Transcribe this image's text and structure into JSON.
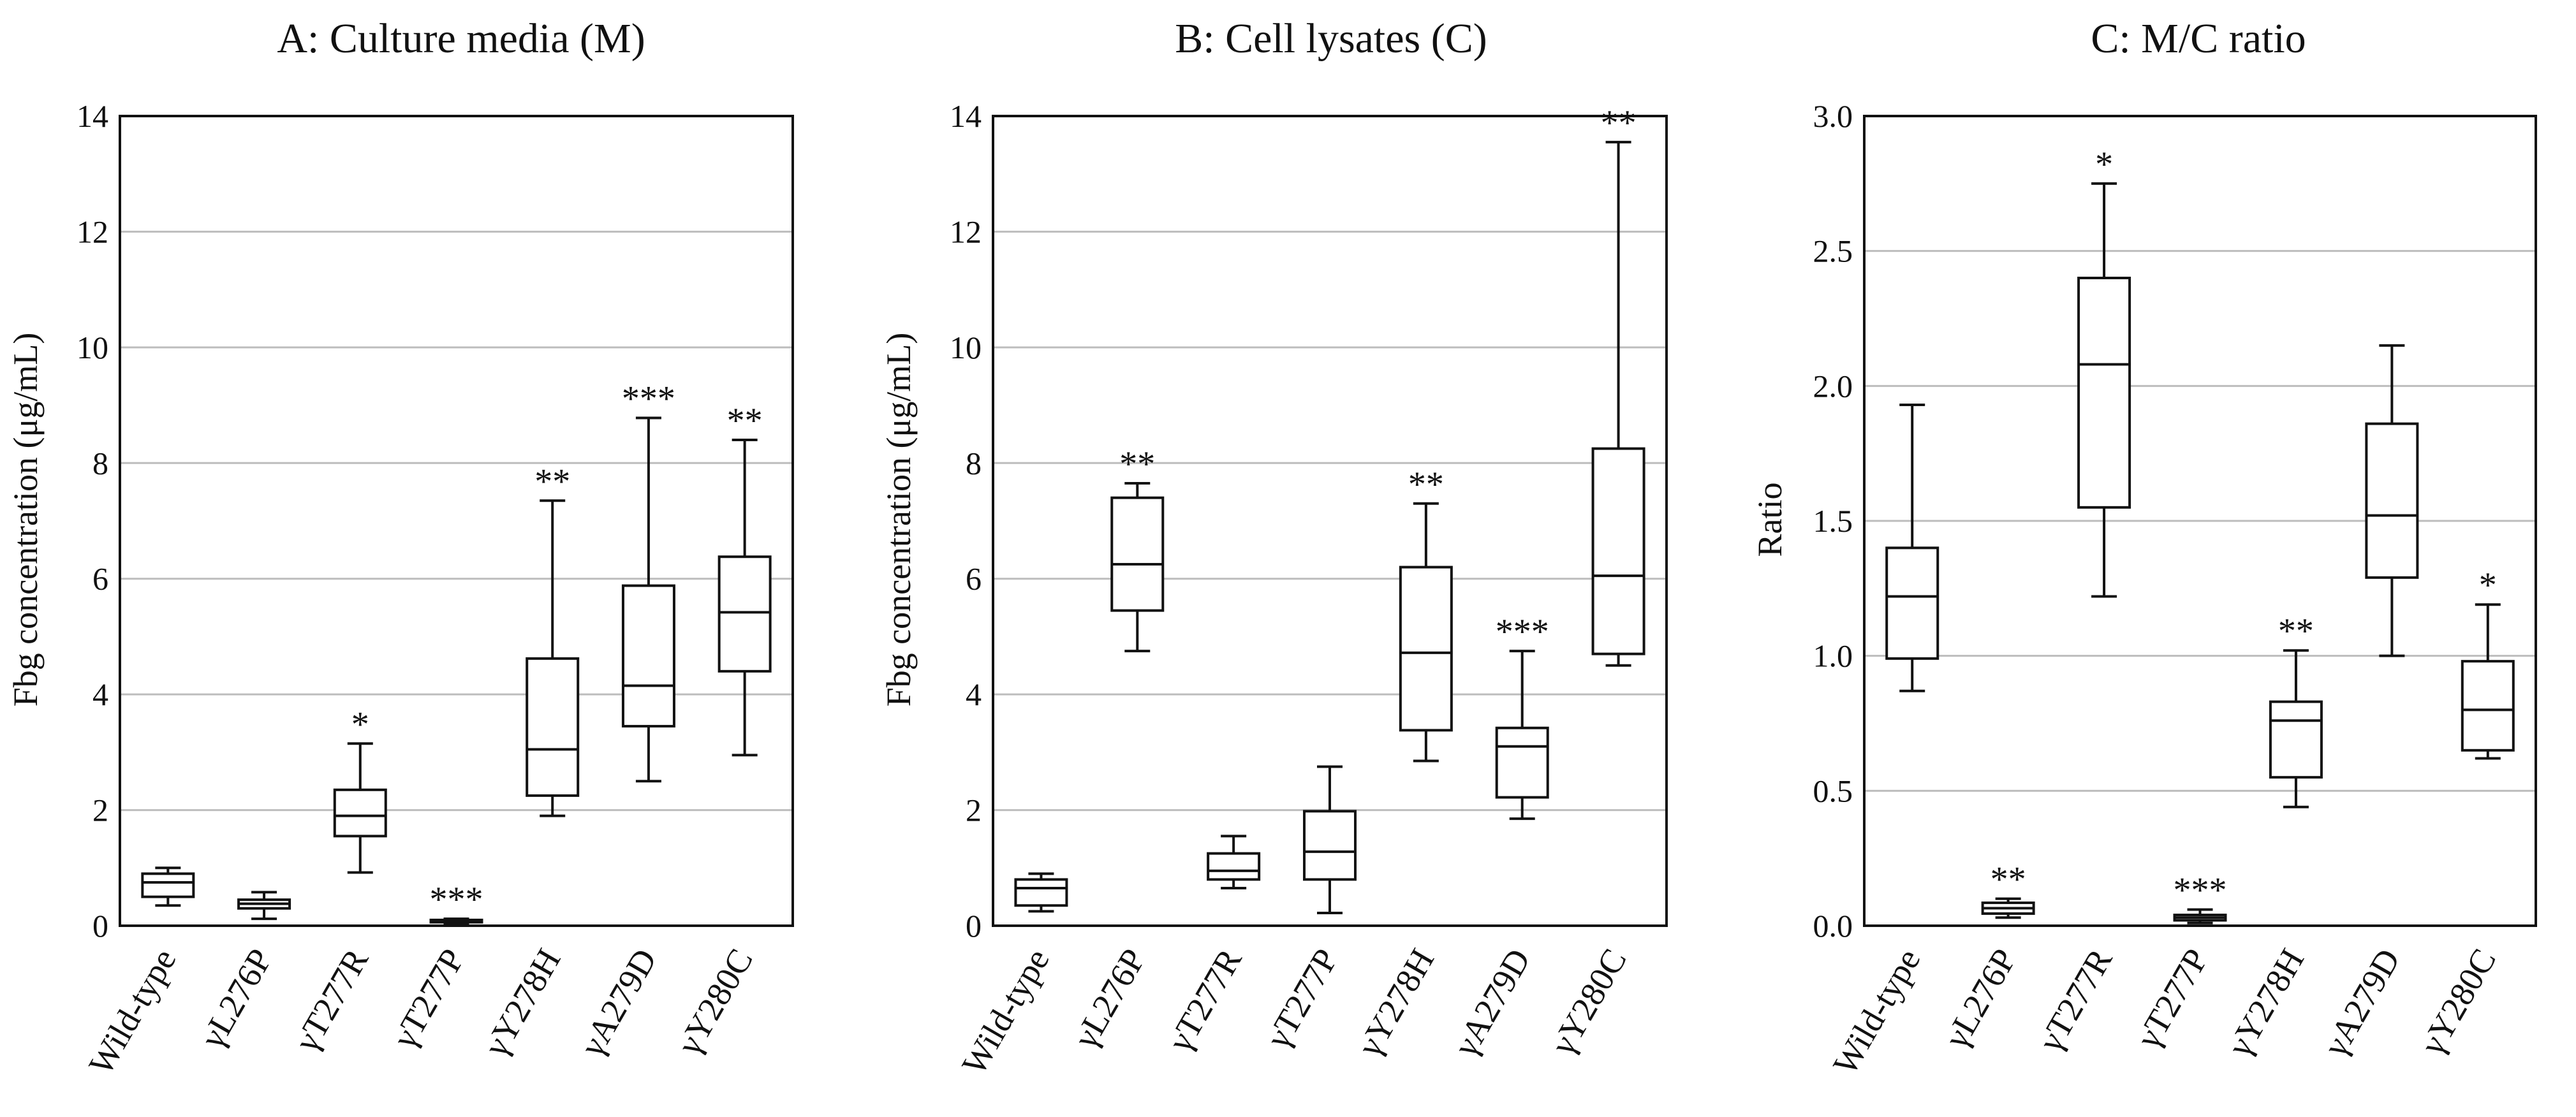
{
  "colors": {
    "background": "#ffffff",
    "ink": "#111111",
    "gridline": "#bdbdbd"
  },
  "chart_data": [
    {
      "type": "box",
      "title": "A: Culture media (M)",
      "xlabel": "",
      "ylabel": "Fbg concentration  (μg/mL)",
      "ylim": [
        0,
        14
      ],
      "yticks": [
        0,
        2,
        4,
        6,
        8,
        10,
        12,
        14
      ],
      "ytick_labels": [
        "0",
        "2",
        "4",
        "6",
        "8",
        "10",
        "12",
        "14"
      ],
      "grid": "horizontal",
      "categories": [
        "Wild-type",
        "γL276P",
        "γT277R",
        "γT277P",
        "γY278H",
        "γA279D",
        "γY280C"
      ],
      "boxes": [
        {
          "min": 0.35,
          "q1": 0.5,
          "median": 0.75,
          "q3": 0.9,
          "max": 1.0,
          "sig": ""
        },
        {
          "min": 0.12,
          "q1": 0.3,
          "median": 0.38,
          "q3": 0.45,
          "max": 0.58,
          "sig": ""
        },
        {
          "min": 0.92,
          "q1": 1.55,
          "median": 1.9,
          "q3": 2.35,
          "max": 3.15,
          "sig": "*"
        },
        {
          "min": 0.04,
          "q1": 0.06,
          "median": 0.08,
          "q3": 0.1,
          "max": 0.12,
          "sig": "***"
        },
        {
          "min": 1.9,
          "q1": 2.25,
          "median": 3.05,
          "q3": 4.62,
          "max": 7.35,
          "sig": "**"
        },
        {
          "min": 2.5,
          "q1": 3.45,
          "median": 4.15,
          "q3": 5.88,
          "max": 8.78,
          "sig": "***"
        },
        {
          "min": 2.95,
          "q1": 4.4,
          "median": 5.42,
          "q3": 6.38,
          "max": 8.4,
          "sig": "**"
        }
      ]
    },
    {
      "type": "box",
      "title": "B: Cell lysates (C)",
      "xlabel": "",
      "ylabel": "Fbg concentration  (μg/mL)",
      "ylim": [
        0,
        14
      ],
      "yticks": [
        0,
        2,
        4,
        6,
        8,
        10,
        12,
        14
      ],
      "ytick_labels": [
        "0",
        "2",
        "4",
        "6",
        "8",
        "10",
        "12",
        "14"
      ],
      "grid": "horizontal",
      "categories": [
        "Wild-type",
        "γL276P",
        "γT277R",
        "γT277P",
        "γY278H",
        "γA279D",
        "γY280C"
      ],
      "boxes": [
        {
          "min": 0.25,
          "q1": 0.35,
          "median": 0.65,
          "q3": 0.8,
          "max": 0.9,
          "sig": ""
        },
        {
          "min": 4.75,
          "q1": 5.45,
          "median": 6.25,
          "q3": 7.4,
          "max": 7.65,
          "sig": "**"
        },
        {
          "min": 0.65,
          "q1": 0.8,
          "median": 0.95,
          "q3": 1.25,
          "max": 1.55,
          "sig": ""
        },
        {
          "min": 0.22,
          "q1": 0.8,
          "median": 1.28,
          "q3": 1.98,
          "max": 2.75,
          "sig": ""
        },
        {
          "min": 2.85,
          "q1": 3.38,
          "median": 4.72,
          "q3": 6.2,
          "max": 7.3,
          "sig": "**"
        },
        {
          "min": 1.85,
          "q1": 2.22,
          "median": 3.1,
          "q3": 3.42,
          "max": 4.75,
          "sig": "***"
        },
        {
          "min": 4.5,
          "q1": 4.7,
          "median": 6.05,
          "q3": 8.25,
          "max": 13.55,
          "sig": "**"
        }
      ]
    },
    {
      "type": "box",
      "title": "C: M/C ratio",
      "xlabel": "",
      "ylabel": "Ratio",
      "ylim": [
        0,
        3
      ],
      "yticks": [
        0,
        0.5,
        1,
        1.5,
        2,
        2.5,
        3
      ],
      "ytick_labels": [
        "0.0",
        "0.5",
        "1.0",
        "1.5",
        "2.0",
        "2.5",
        "3.0"
      ],
      "grid": "horizontal",
      "categories": [
        "Wild-type",
        "γL276P",
        "γT277R",
        "γT277P",
        "γY278H",
        "γA279D",
        "γY280C"
      ],
      "boxes": [
        {
          "min": 0.87,
          "q1": 0.99,
          "median": 1.22,
          "q3": 1.4,
          "max": 1.93,
          "sig": ""
        },
        {
          "min": 0.03,
          "q1": 0.045,
          "median": 0.065,
          "q3": 0.085,
          "max": 0.1,
          "sig": "**"
        },
        {
          "min": 1.22,
          "q1": 1.55,
          "median": 2.08,
          "q3": 2.4,
          "max": 2.75,
          "sig": "*"
        },
        {
          "min": 0.01,
          "q1": 0.02,
          "median": 0.03,
          "q3": 0.04,
          "max": 0.06,
          "sig": "***"
        },
        {
          "min": 0.44,
          "q1": 0.55,
          "median": 0.76,
          "q3": 0.83,
          "max": 1.02,
          "sig": "**"
        },
        {
          "min": 1.0,
          "q1": 1.29,
          "median": 1.52,
          "q3": 1.86,
          "max": 2.15,
          "sig": ""
        },
        {
          "min": 0.62,
          "q1": 0.65,
          "median": 0.8,
          "q3": 0.98,
          "max": 1.19,
          "sig": "*"
        }
      ]
    }
  ]
}
